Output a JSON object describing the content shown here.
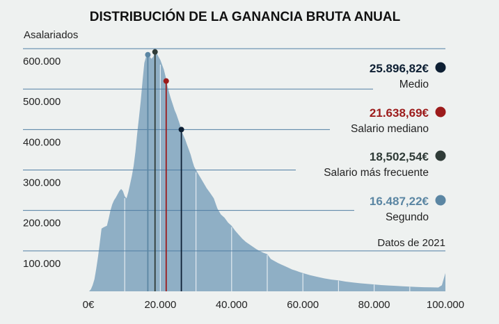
{
  "chart_data": {
    "type": "area",
    "title": "DISTRIBUCIÓN DE LA GANANCIA BRUTA ANUAL",
    "ylabel": "Asalariados",
    "xlabel": "",
    "note": "Datos de 2021",
    "xlim": [
      0,
      100000
    ],
    "ylim": [
      0,
      600000
    ],
    "x_ticks": [
      {
        "value": 0,
        "label": "0€"
      },
      {
        "value": 20000,
        "label": "20.000"
      },
      {
        "value": 40000,
        "label": "40.000"
      },
      {
        "value": 60000,
        "label": "60.000"
      },
      {
        "value": 80000,
        "label": "80.000"
      },
      {
        "value": 100000,
        "label": "100.000"
      }
    ],
    "y_ticks": [
      {
        "value": 100000,
        "label": "100.000"
      },
      {
        "value": 200000,
        "label": "200.000"
      },
      {
        "value": 300000,
        "label": "300.000"
      },
      {
        "value": 400000,
        "label": "400.000"
      },
      {
        "value": 500000,
        "label": "500.000"
      },
      {
        "value": 600000,
        "label": "600.000"
      }
    ],
    "series": [
      {
        "name": "Asalariados",
        "color": "#8fafc5",
        "points": [
          [
            0,
            0
          ],
          [
            500,
            5000
          ],
          [
            1000,
            15000
          ],
          [
            1500,
            30000
          ],
          [
            2000,
            55000
          ],
          [
            2500,
            85000
          ],
          [
            3000,
            120000
          ],
          [
            3500,
            155000
          ],
          [
            4000,
            158000
          ],
          [
            4500,
            160000
          ],
          [
            5000,
            162000
          ],
          [
            5500,
            180000
          ],
          [
            6000,
            200000
          ],
          [
            6500,
            215000
          ],
          [
            7000,
            225000
          ],
          [
            7500,
            232000
          ],
          [
            8000,
            240000
          ],
          [
            8500,
            248000
          ],
          [
            9000,
            253000
          ],
          [
            9500,
            248000
          ],
          [
            10000,
            235000
          ],
          [
            10500,
            230000
          ],
          [
            11000,
            245000
          ],
          [
            11500,
            265000
          ],
          [
            12000,
            285000
          ],
          [
            12500,
            310000
          ],
          [
            13000,
            345000
          ],
          [
            13500,
            390000
          ],
          [
            14000,
            430000
          ],
          [
            14500,
            470000
          ],
          [
            15000,
            520000
          ],
          [
            15500,
            565000
          ],
          [
            16000,
            580000
          ],
          [
            16500,
            585000
          ],
          [
            17000,
            580000
          ],
          [
            17500,
            575000
          ],
          [
            18000,
            580000
          ],
          [
            18500,
            592000
          ],
          [
            19000,
            588000
          ],
          [
            19500,
            580000
          ],
          [
            20000,
            572000
          ],
          [
            20500,
            560000
          ],
          [
            21000,
            548000
          ],
          [
            21500,
            530000
          ],
          [
            22000,
            508000
          ],
          [
            22500,
            490000
          ],
          [
            23000,
            475000
          ],
          [
            23500,
            462000
          ],
          [
            24000,
            448000
          ],
          [
            24500,
            438000
          ],
          [
            25000,
            425000
          ],
          [
            25500,
            412000
          ],
          [
            26000,
            396000
          ],
          [
            26500,
            385000
          ],
          [
            27000,
            375000
          ],
          [
            27500,
            362000
          ],
          [
            28000,
            350000
          ],
          [
            28500,
            338000
          ],
          [
            29000,
            322000
          ],
          [
            29500,
            308000
          ],
          [
            30000,
            300000
          ],
          [
            31000,
            285000
          ],
          [
            32000,
            270000
          ],
          [
            33000,
            255000
          ],
          [
            34000,
            243000
          ],
          [
            35000,
            230000
          ],
          [
            36000,
            205000
          ],
          [
            37000,
            190000
          ],
          [
            38000,
            182000
          ],
          [
            39000,
            170000
          ],
          [
            40000,
            162000
          ],
          [
            41000,
            150000
          ],
          [
            42000,
            140000
          ],
          [
            43000,
            130000
          ],
          [
            44000,
            122000
          ],
          [
            45000,
            116000
          ],
          [
            46000,
            110000
          ],
          [
            47000,
            104000
          ],
          [
            48000,
            99000
          ],
          [
            49000,
            95000
          ],
          [
            50000,
            92000
          ],
          [
            51000,
            80000
          ],
          [
            52000,
            75000
          ],
          [
            53000,
            70000
          ],
          [
            54000,
            66000
          ],
          [
            55000,
            62000
          ],
          [
            56000,
            58000
          ],
          [
            57000,
            54000
          ],
          [
            58000,
            51000
          ],
          [
            59000,
            48000
          ],
          [
            60000,
            45000
          ],
          [
            62000,
            40000
          ],
          [
            64000,
            36000
          ],
          [
            66000,
            32000
          ],
          [
            68000,
            29000
          ],
          [
            70000,
            27000
          ],
          [
            72000,
            24000
          ],
          [
            74000,
            22000
          ],
          [
            76000,
            20000
          ],
          [
            78000,
            18500
          ],
          [
            80000,
            17000
          ],
          [
            82000,
            15500
          ],
          [
            84000,
            14500
          ],
          [
            86000,
            13500
          ],
          [
            88000,
            12500
          ],
          [
            90000,
            11500
          ],
          [
            92000,
            10800
          ],
          [
            94000,
            10200
          ],
          [
            96000,
            9800
          ],
          [
            98000,
            9500
          ],
          [
            99000,
            15000
          ],
          [
            99500,
            30000
          ],
          [
            100000,
            45000
          ]
        ]
      }
    ],
    "markers": [
      {
        "name": "Medio",
        "value_label": "25.896,82€",
        "x": 25896.82,
        "y": 400000,
        "color": "#0d1f33"
      },
      {
        "name": "Salario mediano",
        "value_label": "21.638,69€",
        "x": 21638.69,
        "y": 520000,
        "color": "#9c1b1b"
      },
      {
        "name": "Salario más frecuente",
        "value_label": "18,502,54€",
        "x": 18502.54,
        "y": 592000,
        "color": "#2f3b37"
      },
      {
        "name": "Segundo",
        "value_label": "16.487,22€",
        "x": 16487.22,
        "y": 585000,
        "color": "#5b86a3"
      }
    ]
  }
}
